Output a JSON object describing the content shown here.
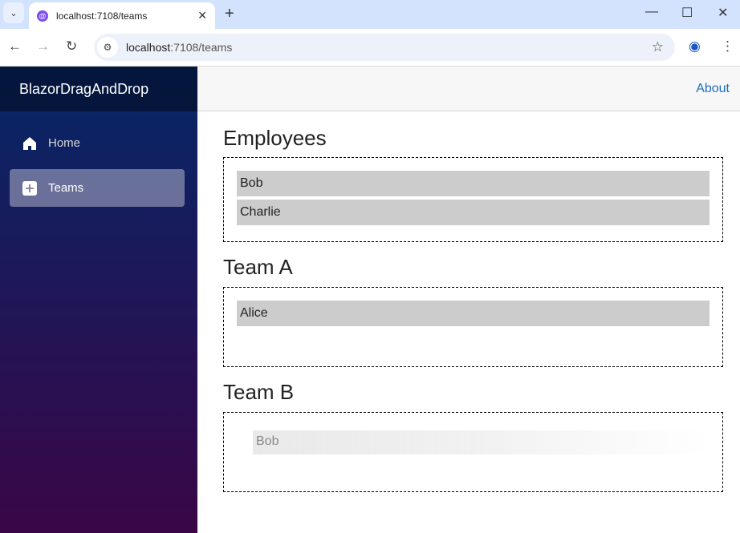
{
  "browser": {
    "tab_title": "localhost:7108/teams",
    "url_host": "localhost",
    "url_rest": ":7108/teams"
  },
  "sidebar": {
    "brand": "BlazorDragAndDrop",
    "items": [
      {
        "label": "Home",
        "icon": "home-icon"
      },
      {
        "label": "Teams",
        "icon": "plus-icon",
        "active": true
      }
    ]
  },
  "header": {
    "about": "About"
  },
  "zones": [
    {
      "title": "Employees",
      "items": [
        "Bob",
        "Charlie"
      ]
    },
    {
      "title": "Team A",
      "items": [
        "Alice"
      ]
    },
    {
      "title": "Team B",
      "items": [],
      "drag_ghost": "Bob"
    }
  ]
}
